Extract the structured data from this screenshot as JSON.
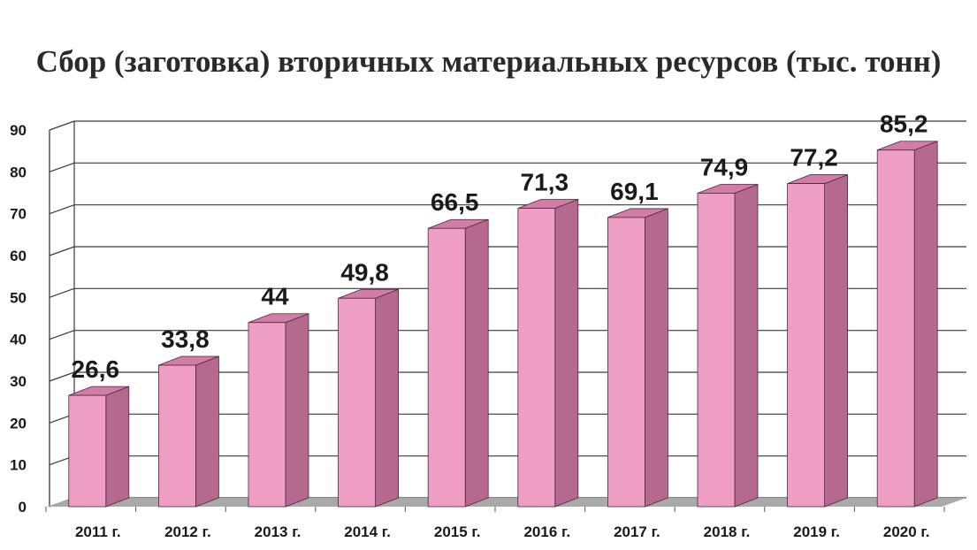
{
  "chart_data": {
    "type": "bar",
    "title": "Сбор (заготовка) вторичных материальных ресурсов (тыс. тонн)",
    "categories": [
      "2011 г.",
      "2012 г.",
      "2013 г.",
      "2014 г.",
      "2015 г.",
      "2016 г.",
      "2017 г.",
      "2018 г.",
      "2019 г.",
      "2020 г."
    ],
    "values": [
      26.6,
      33.8,
      44,
      49.8,
      66.5,
      71.3,
      69.1,
      74.9,
      77.2,
      85.2
    ],
    "data_labels": [
      "26,6",
      "33,8",
      "44",
      "49,8",
      "66,5",
      "71,3",
      "69,1",
      "74,9",
      "77,2",
      "85,2"
    ],
    "yticks": [
      0,
      10,
      20,
      30,
      40,
      50,
      60,
      70,
      80,
      90
    ],
    "ylim": [
      0,
      90
    ],
    "grid": true,
    "three_d": true,
    "xlabel": "",
    "ylabel": "",
    "colors": {
      "bar_front": "#EE9EC4",
      "bar_side": "#B5698F",
      "bar_top": "#D27CA6",
      "grid": "#3a3a3a",
      "floor": "#a9a9a9"
    }
  }
}
